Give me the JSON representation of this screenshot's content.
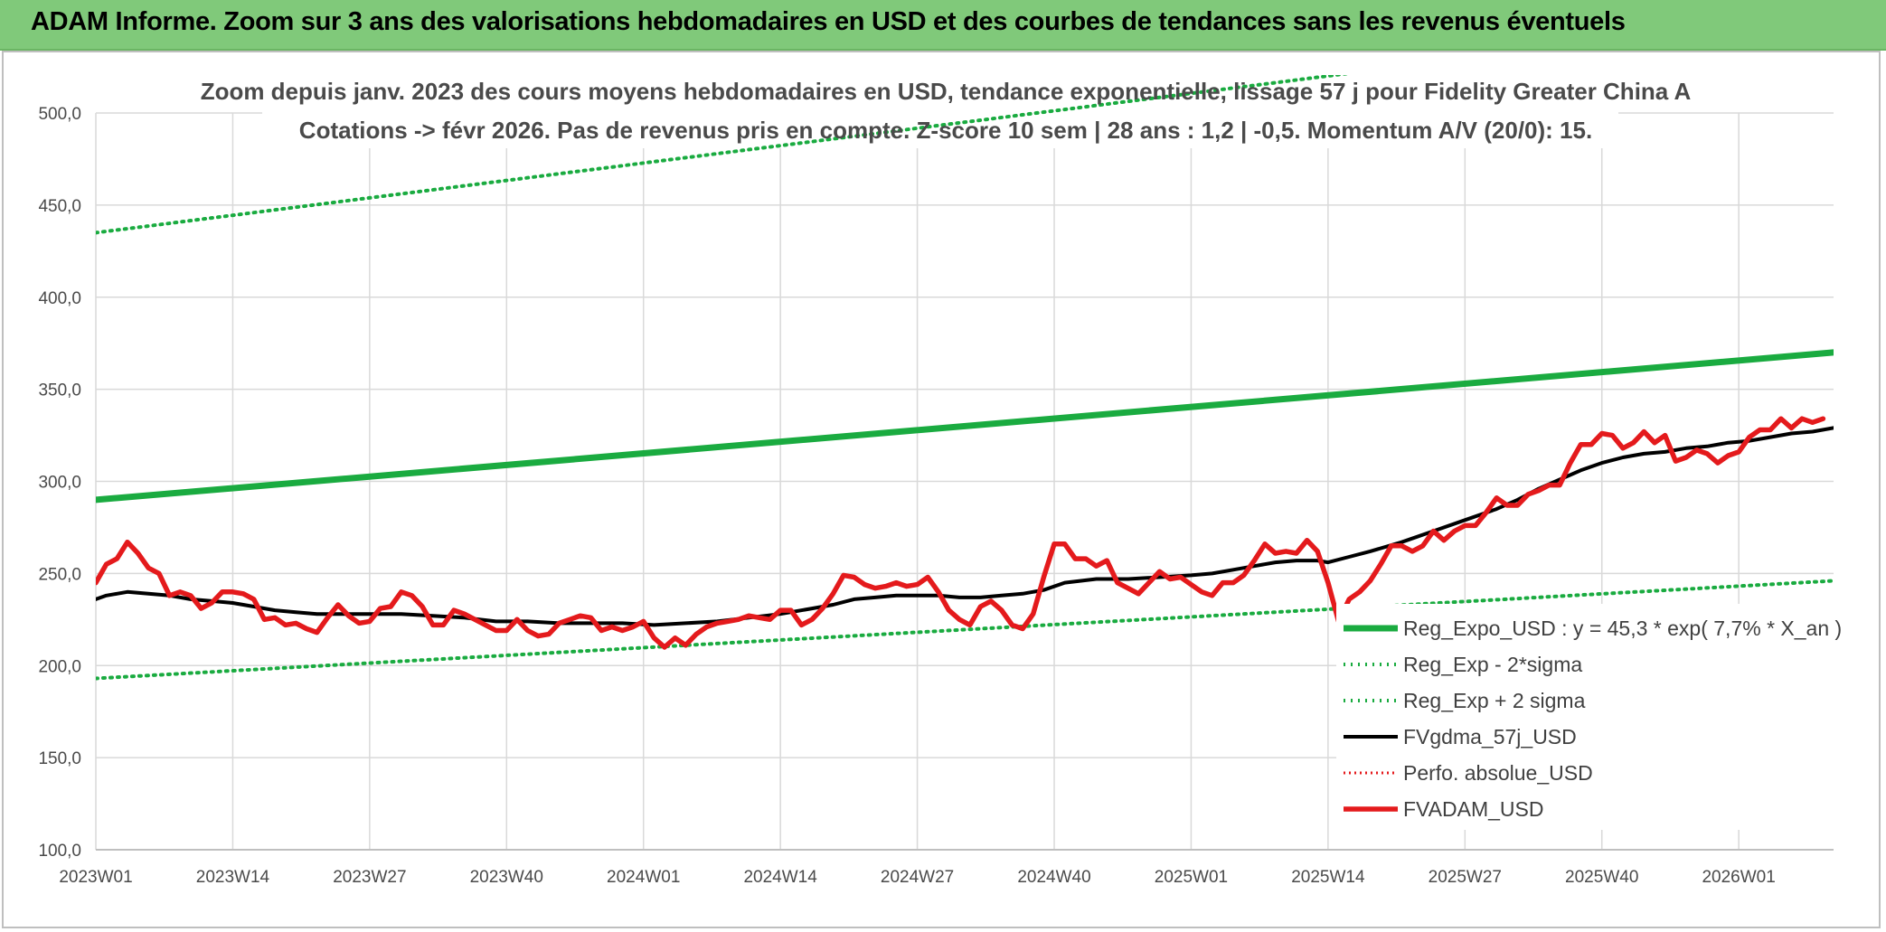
{
  "header": {
    "title": "ADAM Informe. Zoom sur 3 ans des valorisations hebdomadaires en USD et des courbes de tendances sans les revenus éventuels"
  },
  "colors": {
    "trend": "#1aab40",
    "sigma": "#1aab40",
    "smoothed": "#000000",
    "perf": "#e41a1c",
    "price": "#e41a1c",
    "grid": "#d9d9d9",
    "banner": "#80c97a"
  },
  "chart_data": {
    "type": "line",
    "title": [
      "Zoom depuis janv. 2023 des cours moyens hebdomadaires en USD, tendance exponentielle, lissage 57 j pour Fidelity Greater China A",
      "Cotations -> févr 2026. Pas de revenus pris en compte. Z-score 10 sem | 28 ans : 1,2 | -0,5. Momentum A/V (20/0): 15."
    ],
    "xlabel": "",
    "ylabel": "",
    "ylim": [
      100,
      500
    ],
    "yticks": [
      "100,0",
      "150,0",
      "200,0",
      "250,0",
      "300,0",
      "350,0",
      "400,0",
      "450,0",
      "500,0"
    ],
    "x_range_weeks": [
      0,
      165
    ],
    "xticks": [
      {
        "week": 0,
        "label": "2023W01"
      },
      {
        "week": 13,
        "label": "2023W14"
      },
      {
        "week": 26,
        "label": "2023W27"
      },
      {
        "week": 39,
        "label": "2023W40"
      },
      {
        "week": 52,
        "label": "2024W01"
      },
      {
        "week": 65,
        "label": "2024W14"
      },
      {
        "week": 78,
        "label": "2024W27"
      },
      {
        "week": 91,
        "label": "2024W40"
      },
      {
        "week": 104,
        "label": "2025W01"
      },
      {
        "week": 117,
        "label": "2025W14"
      },
      {
        "week": 130,
        "label": "2025W27"
      },
      {
        "week": 143,
        "label": "2025W40"
      },
      {
        "week": 156,
        "label": "2026W01"
      }
    ],
    "grid": true,
    "legend_position": "bottom-right",
    "series": [
      {
        "key": "trend",
        "name": "Reg_Expo_USD : y = 45,3 * exp( 7,7% *  X_an )",
        "style": "solid-thick",
        "points": [
          [
            0,
            290
          ],
          [
            165,
            370
          ]
        ]
      },
      {
        "key": "lower",
        "name": "Reg_Exp - 2*sigma",
        "style": "dotted",
        "points": [
          [
            0,
            193
          ],
          [
            165,
            246
          ]
        ]
      },
      {
        "key": "upper",
        "name": "Reg_Exp + 2 sigma",
        "style": "dotted",
        "points": [
          [
            0,
            435
          ],
          [
            165,
            555
          ]
        ]
      },
      {
        "key": "smoothed",
        "name": "FVgdma_57j_USD",
        "style": "solid",
        "points": [
          [
            0,
            236
          ],
          [
            1,
            238
          ],
          [
            2,
            239
          ],
          [
            3,
            240
          ],
          [
            5,
            239
          ],
          [
            7,
            238
          ],
          [
            9,
            236
          ],
          [
            11,
            235
          ],
          [
            13,
            234
          ],
          [
            15,
            232
          ],
          [
            17,
            230
          ],
          [
            19,
            229
          ],
          [
            21,
            228
          ],
          [
            23,
            228
          ],
          [
            26,
            228
          ],
          [
            29,
            228
          ],
          [
            32,
            227
          ],
          [
            35,
            226
          ],
          [
            38,
            224
          ],
          [
            41,
            224
          ],
          [
            44,
            223
          ],
          [
            47,
            223
          ],
          [
            50,
            223
          ],
          [
            53,
            222
          ],
          [
            56,
            223
          ],
          [
            59,
            224
          ],
          [
            62,
            226
          ],
          [
            65,
            228
          ],
          [
            68,
            231
          ],
          [
            70,
            233
          ],
          [
            72,
            236
          ],
          [
            74,
            237
          ],
          [
            76,
            238
          ],
          [
            78,
            238
          ],
          [
            80,
            238
          ],
          [
            82,
            237
          ],
          [
            84,
            237
          ],
          [
            86,
            238
          ],
          [
            88,
            239
          ],
          [
            90,
            241
          ],
          [
            92,
            245
          ],
          [
            95,
            247
          ],
          [
            98,
            247
          ],
          [
            101,
            248
          ],
          [
            104,
            249
          ],
          [
            106,
            250
          ],
          [
            108,
            252
          ],
          [
            110,
            254
          ],
          [
            112,
            256
          ],
          [
            114,
            257
          ],
          [
            116,
            257
          ],
          [
            117,
            256
          ],
          [
            119,
            259
          ],
          [
            121,
            262
          ],
          [
            124,
            267
          ],
          [
            127,
            273
          ],
          [
            130,
            279
          ],
          [
            133,
            285
          ],
          [
            135,
            290
          ],
          [
            137,
            296
          ],
          [
            139,
            301
          ],
          [
            141,
            306
          ],
          [
            143,
            310
          ],
          [
            145,
            313
          ],
          [
            147,
            315
          ],
          [
            149,
            316
          ],
          [
            151,
            318
          ],
          [
            153,
            319
          ],
          [
            155,
            321
          ],
          [
            157,
            322
          ],
          [
            159,
            324
          ],
          [
            161,
            326
          ],
          [
            163,
            327
          ],
          [
            165,
            329
          ]
        ]
      },
      {
        "key": "perf",
        "name": "Perfo. absolue_USD",
        "style": "dotted-red",
        "points": []
      },
      {
        "key": "price",
        "name": "FVADAM_USD",
        "style": "solid-thick",
        "points": [
          [
            0,
            245
          ],
          [
            1,
            255
          ],
          [
            2,
            258
          ],
          [
            3,
            267
          ],
          [
            4,
            261
          ],
          [
            5,
            253
          ],
          [
            6,
            250
          ],
          [
            7,
            238
          ],
          [
            8,
            240
          ],
          [
            9,
            238
          ],
          [
            10,
            231
          ],
          [
            11,
            234
          ],
          [
            12,
            240
          ],
          [
            13,
            240
          ],
          [
            14,
            239
          ],
          [
            15,
            236
          ],
          [
            16,
            225
          ],
          [
            17,
            226
          ],
          [
            18,
            222
          ],
          [
            19,
            223
          ],
          [
            20,
            220
          ],
          [
            21,
            218
          ],
          [
            22,
            226
          ],
          [
            23,
            233
          ],
          [
            24,
            227
          ],
          [
            25,
            223
          ],
          [
            26,
            224
          ],
          [
            27,
            231
          ],
          [
            28,
            232
          ],
          [
            29,
            240
          ],
          [
            30,
            238
          ],
          [
            31,
            232
          ],
          [
            32,
            222
          ],
          [
            33,
            222
          ],
          [
            34,
            230
          ],
          [
            35,
            228
          ],
          [
            36,
            225
          ],
          [
            37,
            222
          ],
          [
            38,
            219
          ],
          [
            39,
            219
          ],
          [
            40,
            225
          ],
          [
            41,
            219
          ],
          [
            42,
            216
          ],
          [
            43,
            217
          ],
          [
            44,
            223
          ],
          [
            45,
            225
          ],
          [
            46,
            227
          ],
          [
            47,
            226
          ],
          [
            48,
            219
          ],
          [
            49,
            221
          ],
          [
            50,
            219
          ],
          [
            51,
            221
          ],
          [
            52,
            224
          ],
          [
            53,
            215
          ],
          [
            54,
            210
          ],
          [
            55,
            215
          ],
          [
            56,
            211
          ],
          [
            57,
            217
          ],
          [
            58,
            221
          ],
          [
            59,
            223
          ],
          [
            60,
            224
          ],
          [
            61,
            225
          ],
          [
            62,
            227
          ],
          [
            63,
            226
          ],
          [
            64,
            225
          ],
          [
            65,
            230
          ],
          [
            66,
            230
          ],
          [
            67,
            222
          ],
          [
            68,
            225
          ],
          [
            69,
            231
          ],
          [
            70,
            239
          ],
          [
            71,
            249
          ],
          [
            72,
            248
          ],
          [
            73,
            244
          ],
          [
            74,
            242
          ],
          [
            75,
            243
          ],
          [
            76,
            245
          ],
          [
            77,
            243
          ],
          [
            78,
            244
          ],
          [
            79,
            248
          ],
          [
            80,
            240
          ],
          [
            81,
            230
          ],
          [
            82,
            225
          ],
          [
            83,
            222
          ],
          [
            84,
            232
          ],
          [
            85,
            235
          ],
          [
            86,
            230
          ],
          [
            87,
            222
          ],
          [
            88,
            220
          ],
          [
            89,
            228
          ],
          [
            90,
            248
          ],
          [
            91,
            266
          ],
          [
            92,
            266
          ],
          [
            93,
            258
          ],
          [
            94,
            258
          ],
          [
            95,
            254
          ],
          [
            96,
            257
          ],
          [
            97,
            245
          ],
          [
            98,
            242
          ],
          [
            99,
            239
          ],
          [
            100,
            245
          ],
          [
            101,
            251
          ],
          [
            102,
            247
          ],
          [
            103,
            248
          ],
          [
            104,
            244
          ],
          [
            105,
            240
          ],
          [
            106,
            238
          ],
          [
            107,
            245
          ],
          [
            108,
            245
          ],
          [
            109,
            249
          ],
          [
            110,
            257
          ],
          [
            111,
            266
          ],
          [
            112,
            261
          ],
          [
            113,
            262
          ],
          [
            114,
            261
          ],
          [
            115,
            268
          ],
          [
            116,
            262
          ],
          [
            117,
            245
          ],
          [
            118,
            224
          ],
          [
            119,
            236
          ],
          [
            120,
            240
          ],
          [
            121,
            246
          ],
          [
            122,
            255
          ],
          [
            123,
            265
          ],
          [
            124,
            265
          ],
          [
            125,
            262
          ],
          [
            126,
            265
          ],
          [
            127,
            273
          ],
          [
            128,
            268
          ],
          [
            129,
            273
          ],
          [
            130,
            276
          ],
          [
            131,
            276
          ],
          [
            132,
            283
          ],
          [
            133,
            291
          ],
          [
            134,
            287
          ],
          [
            135,
            287
          ],
          [
            136,
            293
          ],
          [
            137,
            295
          ],
          [
            138,
            298
          ],
          [
            139,
            298
          ],
          [
            140,
            310
          ],
          [
            141,
            320
          ],
          [
            142,
            320
          ],
          [
            143,
            326
          ],
          [
            144,
            325
          ],
          [
            145,
            318
          ],
          [
            146,
            321
          ],
          [
            147,
            327
          ],
          [
            148,
            321
          ],
          [
            149,
            325
          ],
          [
            150,
            311
          ],
          [
            151,
            313
          ],
          [
            152,
            317
          ],
          [
            153,
            315
          ],
          [
            154,
            310
          ],
          [
            155,
            314
          ],
          [
            156,
            316
          ],
          [
            157,
            324
          ],
          [
            158,
            328
          ],
          [
            159,
            328
          ],
          [
            160,
            334
          ],
          [
            161,
            329
          ],
          [
            162,
            334
          ],
          [
            163,
            332
          ],
          [
            164,
            334
          ]
        ]
      }
    ]
  }
}
